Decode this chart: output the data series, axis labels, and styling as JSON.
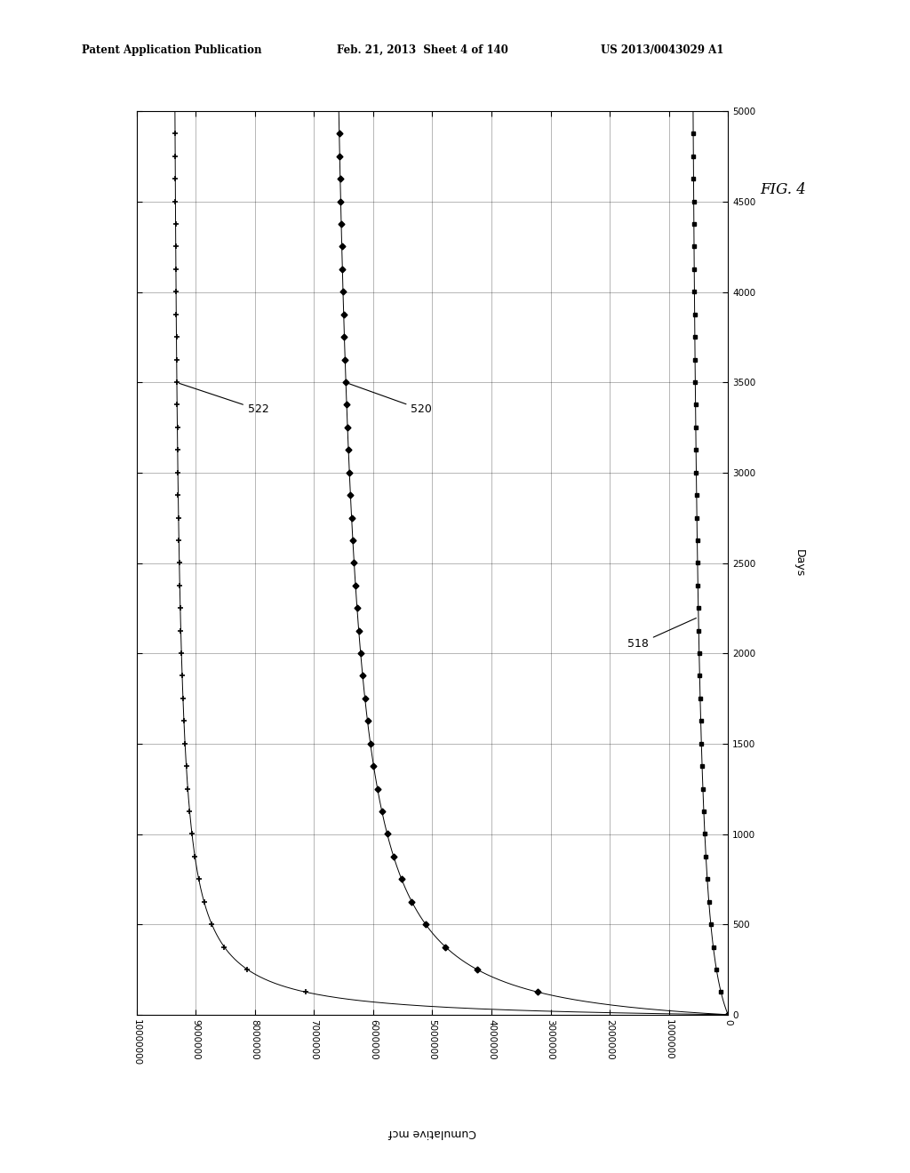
{
  "header_left": "Patent Application Publication",
  "header_mid": "Feb. 21, 2013  Sheet 4 of 140",
  "header_right": "US 2013/0043029 A1",
  "fig_label": "FIG. 4",
  "days_label": "Days",
  "cum_label": "Cumulative mcf",
  "cum_max": 10000000,
  "days_max": 5000,
  "cum_ticks": [
    0,
    1000000,
    2000000,
    3000000,
    4000000,
    5000000,
    6000000,
    7000000,
    8000000,
    9000000,
    10000000
  ],
  "days_ticks": [
    0,
    500,
    1000,
    1500,
    2000,
    2500,
    3000,
    3500,
    4000,
    4500,
    5000
  ],
  "background_color": "#ffffff",
  "line_color": "#000000",
  "annot_522_day": 3500,
  "annot_520_day": 3500,
  "annot_518_day": 2200
}
